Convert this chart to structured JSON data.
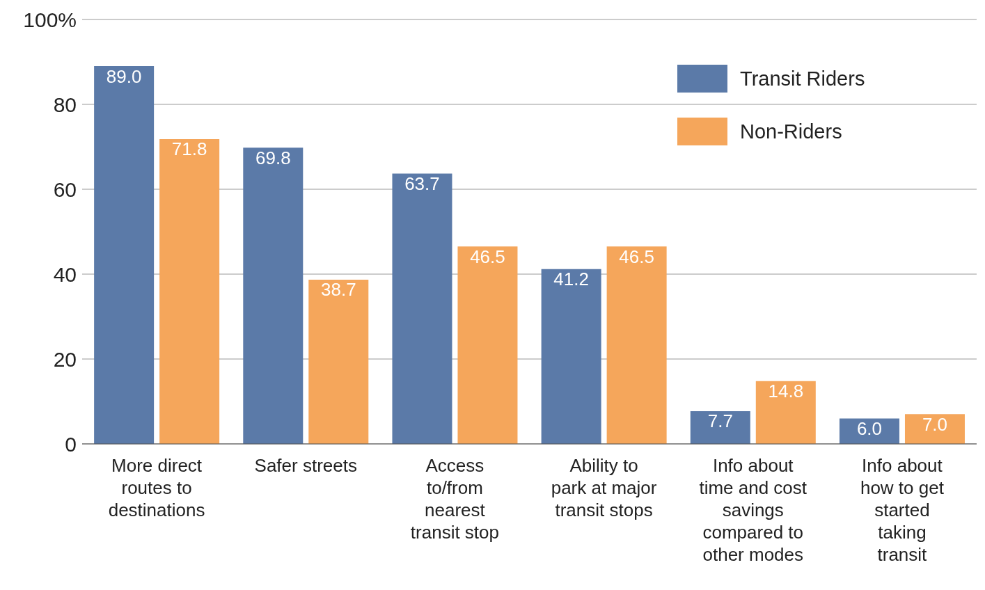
{
  "chart_data": {
    "type": "bar",
    "categories": [
      "More direct routes to destinations",
      "Safer streets",
      "Access to/from nearest transit stop",
      "Ability to park at major transit stops",
      "Info about time and cost savings compared to other modes",
      "Info about how to get started taking transit"
    ],
    "series": [
      {
        "name": "Transit Riders",
        "color": "#5b7aa8",
        "values": [
          89.0,
          69.8,
          63.7,
          41.2,
          7.7,
          6.0
        ],
        "value_labels": [
          "89.0",
          "69.8",
          "63.7",
          "41.2",
          "7.7",
          "6.0"
        ]
      },
      {
        "name": "Non-Riders",
        "color": "#f5a65b",
        "values": [
          71.8,
          38.7,
          46.5,
          46.5,
          14.8,
          7.0
        ],
        "value_labels": [
          "71.8",
          "38.7",
          "46.5",
          "46.5",
          "14.8",
          "7.0"
        ]
      }
    ],
    "ylim": [
      0,
      100
    ],
    "yticks": [
      0,
      20,
      40,
      60,
      80,
      {
        "value": 100,
        "label": "100%"
      }
    ],
    "grid": "y",
    "legend": "top right"
  }
}
